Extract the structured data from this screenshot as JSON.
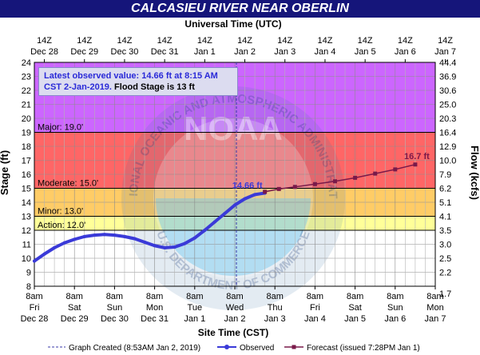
{
  "page": {
    "title": "CALCASIEU RIVER NEAR OBERLIN"
  },
  "chart_data": {
    "type": "line",
    "title": "CALCASIEU RIVER NEAR OBERLIN",
    "top_axis_title": "Universal Time (UTC)",
    "bottom_axis_title": "Site Time (CST)",
    "ylabel": "Stage (ft)",
    "y2label": "Flow (kcfs)",
    "ylim": [
      8,
      24
    ],
    "y_ticks": [
      8,
      9,
      10,
      11,
      12,
      13,
      14,
      15,
      16,
      17,
      18,
      19,
      20,
      21,
      22,
      23,
      24
    ],
    "x_start": "Dec 28 8am",
    "x_days": 10,
    "bottom_ticks": [
      {
        "t": "8am",
        "d": "Fri",
        "date": "Dec 28"
      },
      {
        "t": "8am",
        "d": "Sat",
        "date": "Dec 29"
      },
      {
        "t": "8am",
        "d": "Sun",
        "date": "Dec 30"
      },
      {
        "t": "8am",
        "d": "Mon",
        "date": "Dec 31"
      },
      {
        "t": "8am",
        "d": "Tue",
        "date": "Jan 1"
      },
      {
        "t": "8am",
        "d": "Wed",
        "date": "Jan 2"
      },
      {
        "t": "8am",
        "d": "Thu",
        "date": "Jan 3"
      },
      {
        "t": "8am",
        "d": "Fri",
        "date": "Jan 4"
      },
      {
        "t": "8am",
        "d": "Sat",
        "date": "Jan 5"
      },
      {
        "t": "8am",
        "d": "Sun",
        "date": "Jan 6"
      },
      {
        "t": "8am",
        "d": "Mon",
        "date": "Jan 7"
      }
    ],
    "top_ticks": [
      {
        "t": "14Z",
        "date": "Dec 28"
      },
      {
        "t": "14Z",
        "date": "Dec 29"
      },
      {
        "t": "14Z",
        "date": "Dec 30"
      },
      {
        "t": "14Z",
        "date": "Dec 31"
      },
      {
        "t": "14Z",
        "date": "Jan 1"
      },
      {
        "t": "14Z",
        "date": "Jan 2"
      },
      {
        "t": "14Z",
        "date": "Jan 3"
      },
      {
        "t": "14Z",
        "date": "Jan 4"
      },
      {
        "t": "14Z",
        "date": "Jan 5"
      },
      {
        "t": "14Z",
        "date": "Jan 6"
      },
      {
        "t": "14Z",
        "date": "Jan 7"
      }
    ],
    "flow_ticks": [
      {
        "stage": 7.5,
        "label": "1.7"
      },
      {
        "stage": 9.0,
        "label": "2.2"
      },
      {
        "stage": 10.0,
        "label": "2.5"
      },
      {
        "stage": 11.0,
        "label": "3.0"
      },
      {
        "stage": 12.0,
        "label": "3.5"
      },
      {
        "stage": 13.0,
        "label": "4.1"
      },
      {
        "stage": 14.0,
        "label": "5.1"
      },
      {
        "stage": 15.0,
        "label": "6.2"
      },
      {
        "stage": 16.0,
        "label": "7.9"
      },
      {
        "stage": 17.0,
        "label": "10.0"
      },
      {
        "stage": 18.0,
        "label": "12.9"
      },
      {
        "stage": 19.0,
        "label": "16.4"
      },
      {
        "stage": 20.0,
        "label": "20.3"
      },
      {
        "stage": 21.0,
        "label": "25.0"
      },
      {
        "stage": 22.0,
        "label": "30.6"
      },
      {
        "stage": 23.0,
        "label": "36.9"
      },
      {
        "stage": 24.0,
        "label": "44.4"
      }
    ],
    "bands": [
      {
        "name": "Action",
        "label": "Action: 12.0'",
        "from": 12,
        "to": 13,
        "color": "#ffff99"
      },
      {
        "name": "Minor",
        "label": "Minor: 13.0'",
        "from": 13,
        "to": 15,
        "color": "#ffcc66"
      },
      {
        "name": "Moderate",
        "label": "Moderate: 15.0'",
        "from": 15,
        "to": 19,
        "color": "#ff6666"
      },
      {
        "name": "Major",
        "label": "Major: 19.0'",
        "from": 19,
        "to": 24,
        "color": "#cc66ff"
      }
    ],
    "series": [
      {
        "name": "Observed",
        "color": "#3a3ad8",
        "points": [
          [
            0.0,
            9.8
          ],
          [
            0.25,
            10.3
          ],
          [
            0.5,
            10.75
          ],
          [
            0.75,
            11.1
          ],
          [
            1.0,
            11.35
          ],
          [
            1.25,
            11.55
          ],
          [
            1.5,
            11.65
          ],
          [
            1.75,
            11.7
          ],
          [
            2.0,
            11.65
          ],
          [
            2.25,
            11.55
          ],
          [
            2.5,
            11.4
          ],
          [
            2.75,
            11.15
          ],
          [
            3.0,
            10.9
          ],
          [
            3.25,
            10.75
          ],
          [
            3.5,
            10.8
          ],
          [
            3.75,
            11.05
          ],
          [
            4.0,
            11.45
          ],
          [
            4.25,
            12.0
          ],
          [
            4.5,
            12.6
          ],
          [
            4.75,
            13.2
          ],
          [
            5.0,
            13.8
          ],
          [
            5.25,
            14.25
          ],
          [
            5.5,
            14.55
          ],
          [
            5.75,
            14.66
          ]
        ]
      },
      {
        "name": "Forecast",
        "color": "#7a1a4a",
        "points": [
          [
            5.75,
            14.75
          ],
          [
            6.1,
            14.95
          ],
          [
            6.5,
            15.1
          ],
          [
            7.0,
            15.3
          ],
          [
            7.5,
            15.5
          ],
          [
            8.0,
            15.75
          ],
          [
            8.5,
            16.05
          ],
          [
            9.0,
            16.35
          ],
          [
            9.5,
            16.7
          ]
        ]
      }
    ],
    "graph_created_x": 5.04,
    "latest_label": "14.66 ft",
    "forecast_peak_label": "16.7 ft",
    "legend": {
      "created": "Graph Created (8:53AM Jan 2, 2019)",
      "observed": "Observed",
      "forecast": "Forecast (issued 7:28PM Jan 1)"
    }
  },
  "notice": {
    "line1": "Latest observed value: 14.66 ft at 8:15 AM",
    "line2a": "CST 2-Jan-2019.",
    "line2b": " Flood Stage is 13 ft"
  },
  "watermark": {
    "text": "NOAA",
    "ring_top": "NATIONAL OCEANIC AND ATMOSPHERIC ADMINISTRATION",
    "ring_bottom": "U.S. DEPARTMENT OF COMMERCE"
  }
}
